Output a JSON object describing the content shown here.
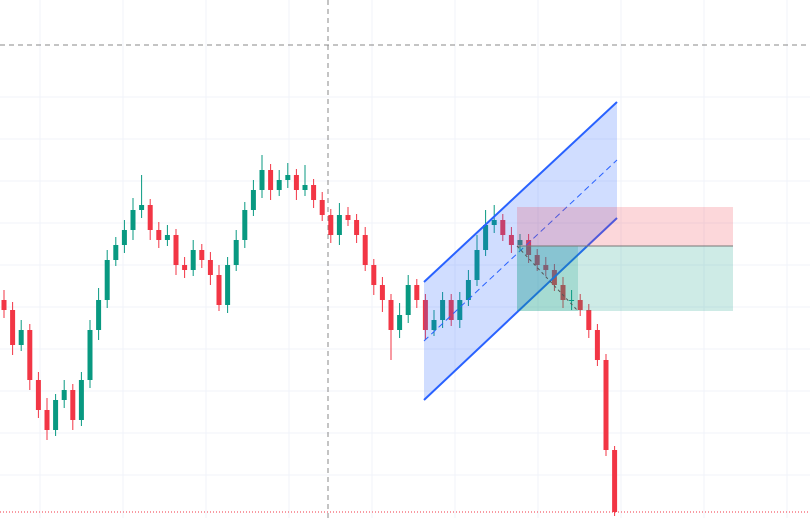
{
  "chart_data": {
    "type": "candlestick",
    "ylim": [
      0,
      518
    ],
    "up_color": "#089981",
    "down_color": "#f23645",
    "open": [
      218,
      208,
      173,
      188,
      138,
      108,
      88,
      118,
      128,
      98,
      138,
      188,
      218,
      258,
      273,
      288,
      308,
      313,
      288,
      278,
      283,
      253,
      248,
      268,
      258,
      243,
      213,
      253,
      278,
      308,
      328,
      348,
      328,
      338,
      343,
      328,
      333,
      318,
      303,
      283,
      303,
      298,
      283,
      253,
      233,
      218,
      188,
      203,
      233,
      218,
      188,
      198,
      218,
      198,
      218,
      238,
      268,
      293,
      298,
      283,
      273,
      278,
      263,
      253,
      248,
      233,
      218,
      218,
      208,
      188,
      158,
      68
    ],
    "high": [
      228,
      216,
      198,
      194,
      146,
      120,
      124,
      138,
      134,
      146,
      198,
      230,
      268,
      281,
      298,
      320,
      343,
      319,
      296,
      293,
      289,
      261,
      278,
      274,
      266,
      253,
      261,
      288,
      316,
      338,
      363,
      354,
      348,
      355,
      349,
      353,
      339,
      326,
      309,
      315,
      311,
      304,
      291,
      259,
      241,
      224,
      215,
      243,
      239,
      224,
      208,
      226,
      224,
      226,
      248,
      283,
      308,
      313,
      304,
      291,
      284,
      284,
      269,
      261,
      254,
      241,
      228,
      224,
      214,
      194,
      164,
      72
    ],
    "low": [
      200,
      163,
      167,
      128,
      100,
      78,
      82,
      110,
      88,
      92,
      130,
      178,
      210,
      252,
      265,
      278,
      300,
      278,
      270,
      272,
      243,
      240,
      242,
      250,
      233,
      207,
      205,
      247,
      270,
      302,
      320,
      318,
      322,
      330,
      318,
      322,
      310,
      297,
      275,
      273,
      292,
      275,
      247,
      223,
      206,
      158,
      180,
      195,
      210,
      178,
      182,
      190,
      192,
      190,
      212,
      232,
      262,
      285,
      277,
      265,
      267,
      255,
      247,
      242,
      227,
      210,
      208,
      202,
      180,
      152,
      62,
      2
    ],
    "close": [
      208,
      173,
      188,
      138,
      108,
      88,
      118,
      128,
      98,
      138,
      188,
      218,
      258,
      273,
      288,
      308,
      313,
      288,
      278,
      283,
      253,
      248,
      268,
      258,
      243,
      213,
      253,
      278,
      308,
      328,
      348,
      328,
      338,
      343,
      328,
      333,
      318,
      303,
      283,
      303,
      298,
      283,
      253,
      233,
      218,
      188,
      203,
      233,
      218,
      188,
      198,
      218,
      198,
      218,
      238,
      268,
      293,
      298,
      283,
      273,
      278,
      263,
      253,
      248,
      233,
      218,
      218,
      208,
      188,
      158,
      68,
      6
    ]
  }
}
